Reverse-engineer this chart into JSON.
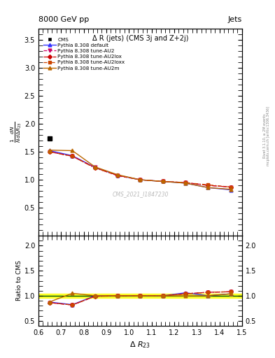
{
  "title_top": "8000 GeV pp",
  "title_right": "Jets",
  "plot_title": "Δ R (jets) (CMS 3j and Z+2j)",
  "watermark": "CMS_2021_I1847230",
  "rivet_text": "Rivet 3.1.10, ≥ 2M events",
  "mcplots_text": "mcplots.cern.ch [arXiv:1306.3436]",
  "xlabel": "Δ R_{23}",
  "ylabel_main": "$\\frac{1}{N}\\frac{dN}{d\\Delta R_{23}}$",
  "ylabel_ratio": "Ratio to CMS",
  "x_data": [
    0.65,
    0.75,
    0.85,
    0.95,
    1.05,
    1.15,
    1.25,
    1.35,
    1.45
  ],
  "cms_x": [
    0.65
  ],
  "cms_y": [
    1.74
  ],
  "cms_color": "#000000",
  "default_y": [
    1.52,
    1.43,
    1.22,
    1.08,
    1.0,
    0.97,
    0.94,
    0.86,
    0.82
  ],
  "au2_y": [
    1.5,
    1.42,
    1.22,
    1.07,
    1.0,
    0.97,
    0.95,
    0.9,
    0.87
  ],
  "au2lox_y": [
    1.5,
    1.42,
    1.21,
    1.08,
    1.0,
    0.97,
    0.95,
    0.9,
    0.87
  ],
  "au2loxx_y": [
    1.5,
    1.42,
    1.21,
    1.08,
    1.0,
    0.97,
    0.95,
    0.91,
    0.87
  ],
  "au2m_y": [
    1.53,
    1.52,
    1.23,
    1.09,
    1.0,
    0.97,
    0.94,
    0.86,
    0.83
  ],
  "r_default": [
    0.874,
    0.822,
    1.0,
    1.0,
    1.0,
    1.0,
    1.06,
    1.0,
    1.04
  ],
  "r_au2": [
    0.862,
    0.816,
    0.99,
    0.998,
    1.0,
    1.0,
    1.04,
    1.07,
    1.08
  ],
  "r_au2lox": [
    0.862,
    0.816,
    0.99,
    0.998,
    1.0,
    1.0,
    1.04,
    1.07,
    1.08
  ],
  "r_au2loxx": [
    0.862,
    0.816,
    0.99,
    0.998,
    1.0,
    1.0,
    1.04,
    1.07,
    1.08
  ],
  "r_au2m": [
    0.879,
    1.05,
    1.0,
    1.005,
    1.0,
    1.0,
    0.998,
    1.0,
    1.04
  ],
  "xlim": [
    0.6,
    1.5
  ],
  "ylim_main": [
    0.0,
    3.7
  ],
  "ylim_ratio": [
    0.4,
    2.2
  ],
  "yticks_main": [
    0.5,
    1.0,
    1.5,
    2.0,
    2.5,
    3.0,
    3.5
  ],
  "yticks_ratio": [
    0.5,
    1.0,
    1.5,
    2.0
  ],
  "xticks": [
    0.6,
    0.7,
    0.8,
    0.9,
    1.0,
    1.1,
    1.2,
    1.3,
    1.4,
    1.5
  ],
  "default_color": "#3333ff",
  "au2_color": "#cc0066",
  "au2lox_color": "#cc0000",
  "au2loxx_color": "#cc4400",
  "au2m_color": "#bb6600",
  "bg_color": "#ffffff",
  "green_line": "#00bb00",
  "yellow_band_lo": 0.96,
  "yellow_band_hi": 1.04
}
